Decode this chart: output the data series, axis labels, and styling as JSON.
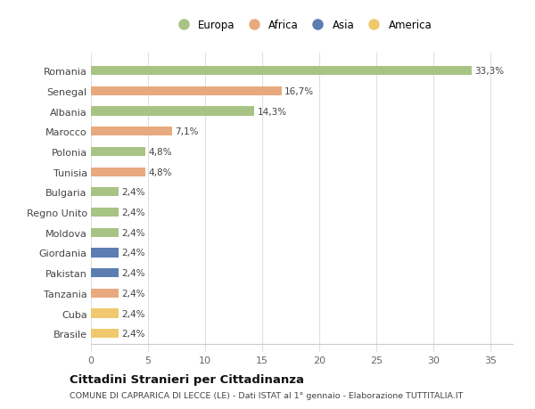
{
  "categories": [
    "Brasile",
    "Cuba",
    "Tanzania",
    "Pakistan",
    "Giordania",
    "Moldova",
    "Regno Unito",
    "Bulgaria",
    "Tunisia",
    "Polonia",
    "Marocco",
    "Albania",
    "Senegal",
    "Romania"
  ],
  "values": [
    2.4,
    2.4,
    2.4,
    2.4,
    2.4,
    2.4,
    2.4,
    2.4,
    4.8,
    4.8,
    7.1,
    14.3,
    16.7,
    33.3
  ],
  "labels": [
    "2,4%",
    "2,4%",
    "2,4%",
    "2,4%",
    "2,4%",
    "2,4%",
    "2,4%",
    "2,4%",
    "4,8%",
    "4,8%",
    "7,1%",
    "14,3%",
    "16,7%",
    "33,3%"
  ],
  "continent": [
    "America",
    "America",
    "Africa",
    "Asia",
    "Asia",
    "Europa",
    "Europa",
    "Europa",
    "Africa",
    "Europa",
    "Africa",
    "Europa",
    "Africa",
    "Europa"
  ],
  "colors": {
    "Europa": "#a8c484",
    "Africa": "#e8a97e",
    "Asia": "#5b7db1",
    "America": "#f0c96e"
  },
  "legend_order": [
    "Europa",
    "Africa",
    "Asia",
    "America"
  ],
  "title": "Cittadini Stranieri per Cittadinanza",
  "subtitle": "COMUNE DI CAPRARICA DI LECCE (LE) - Dati ISTAT al 1° gennaio - Elaborazione TUTTITALIA.IT",
  "xlim": [
    0,
    37
  ],
  "xticks": [
    0,
    5,
    10,
    15,
    20,
    25,
    30,
    35
  ],
  "background_color": "#ffffff",
  "grid_color": "#e0e0e0",
  "bar_height": 0.45
}
